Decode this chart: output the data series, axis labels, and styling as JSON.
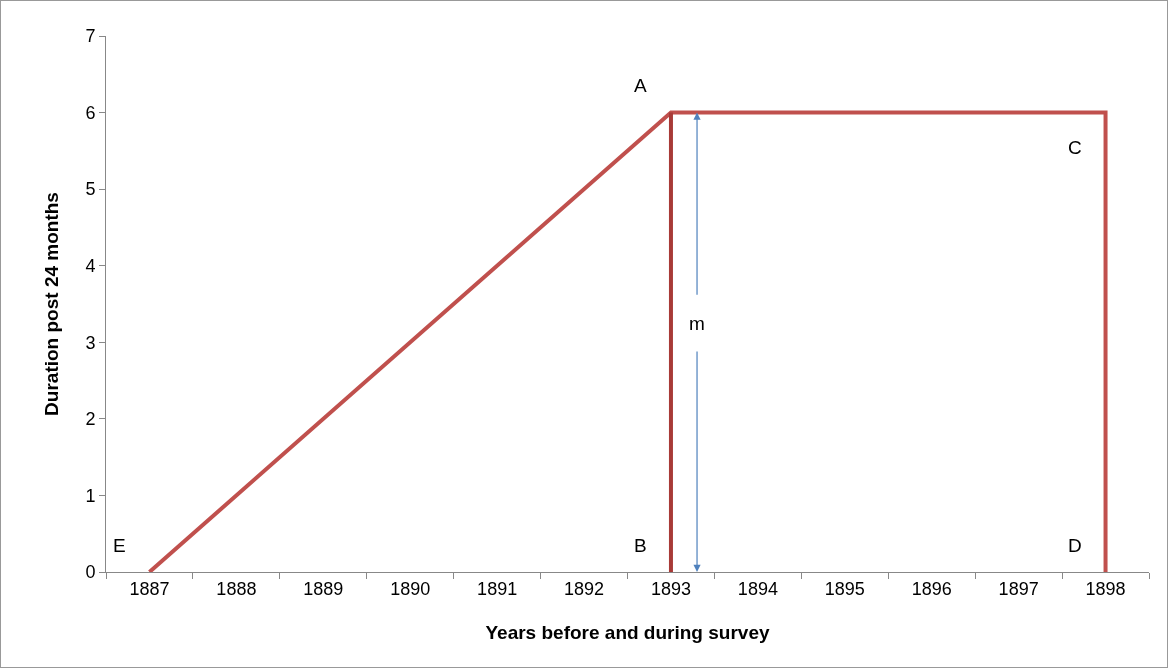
{
  "chart_data": {
    "type": "line",
    "xlabel": "Years before and during survey",
    "ylabel": "Duration post 24 months",
    "xlim": [
      1886.5,
      1898.5
    ],
    "xticks": [
      1887,
      1888,
      1889,
      1890,
      1891,
      1892,
      1893,
      1894,
      1895,
      1896,
      1897,
      1898
    ],
    "ylim": [
      0,
      7
    ],
    "yticks": [
      0,
      1,
      2,
      3,
      4,
      5,
      6,
      7
    ],
    "grid": false,
    "marker": "none",
    "line_style": "solid",
    "series": [
      {
        "color": "#c0504d",
        "x": [
          1887,
          1893,
          1898,
          1898
        ],
        "values": [
          0,
          6,
          6,
          0
        ]
      },
      {
        "color": "#a83a37",
        "x": [
          1893,
          1893
        ],
        "values": [
          0,
          6
        ]
      }
    ],
    "annotations": [
      {
        "text": "A",
        "x": 1893,
        "y": 6
      },
      {
        "text": "B",
        "x": 1893,
        "y": 0
      },
      {
        "text": "C",
        "x": 1898,
        "y": 6
      },
      {
        "text": "D",
        "x": 1898,
        "y": 0
      },
      {
        "text": "E",
        "x": 1887,
        "y": 0
      },
      {
        "text": "m",
        "x": 1893,
        "y": 3
      }
    ]
  }
}
